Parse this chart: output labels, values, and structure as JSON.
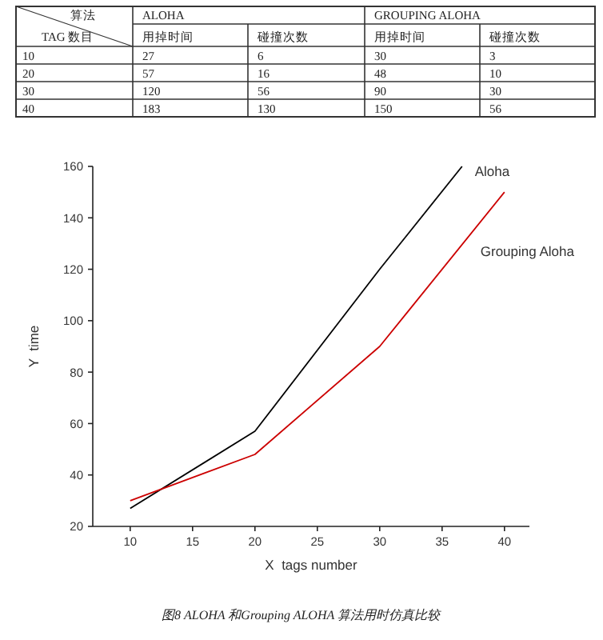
{
  "chart_data": [
    {
      "type": "heatmap",
      "categories": [
        "用掉时间",
        "碰撞次数",
        "用掉时间",
        "碰撞次数"
      ],
      "y_categories": [
        "10",
        "20",
        "30",
        "40"
      ],
      "cells": [
        [
          27,
          6,
          30,
          3
        ],
        [
          57,
          16,
          48,
          10
        ],
        [
          120,
          56,
          90,
          30
        ],
        [
          183,
          130,
          150,
          56
        ]
      ],
      "data_labels": true,
      "annotations": [
        "算法",
        "TAG 数目",
        "ALOHA",
        "GROUPING ALOHA"
      ]
    },
    {
      "type": "line",
      "xlabel": "X  tags number",
      "ylabel": "Y  time",
      "xlim": [
        7,
        42
      ],
      "ylim": [
        20,
        160
      ],
      "xticks": [
        10,
        15,
        20,
        25,
        30,
        35,
        40
      ],
      "yticks": [
        20,
        40,
        60,
        80,
        100,
        120,
        140,
        160
      ],
      "series": [
        {
          "name": "Aloha",
          "color": "#000000",
          "x": [
            10,
            20,
            30,
            36.6
          ],
          "values": [
            27,
            57,
            120,
            160
          ]
        },
        {
          "name": "Grouping Aloha",
          "color": "#cc0000",
          "x": [
            10,
            20,
            30,
            40
          ],
          "values": [
            30,
            48,
            90,
            150
          ]
        }
      ],
      "annotations": [
        "图8 ALOHA 和Grouping ALOHA 算法用时仿真比较"
      ]
    }
  ]
}
